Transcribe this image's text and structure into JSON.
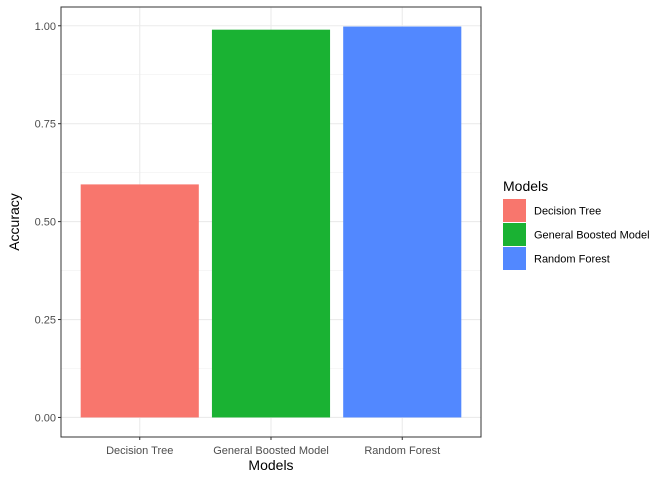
{
  "chart_data": {
    "type": "bar",
    "categories": [
      "Decision Tree",
      "General Boosted Model",
      "Random Forest"
    ],
    "values": [
      0.595,
      0.99,
      0.998
    ],
    "colors": [
      "#F8766D",
      "#1AB233",
      "#5288FF"
    ],
    "xlabel": "Models",
    "ylabel": "Accuracy",
    "ylim": [
      -0.0499,
      1.0479
    ],
    "yticks": [
      0.0,
      0.25,
      0.5,
      0.75,
      1.0
    ],
    "ytick_labels": [
      "0.00",
      "0.25",
      "0.50",
      "0.75",
      "1.00"
    ],
    "grid": true,
    "legend": {
      "title": "Models",
      "placement": "right",
      "entries": [
        "Decision Tree",
        "General Boosted Model",
        "Random Forest"
      ]
    }
  }
}
